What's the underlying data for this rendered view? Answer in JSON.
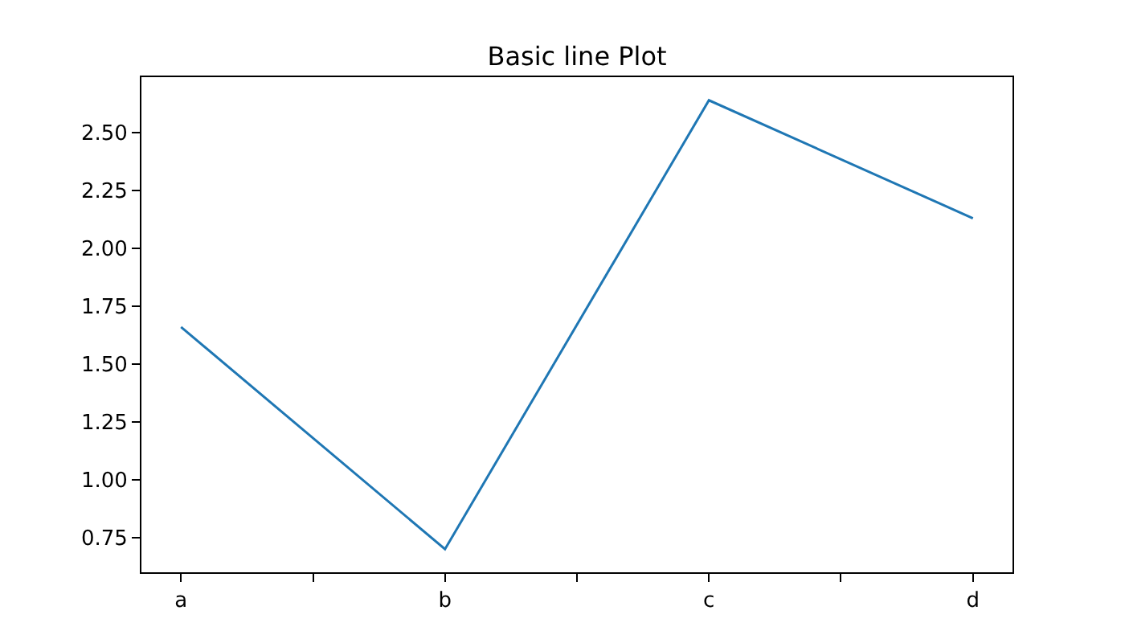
{
  "chart_data": {
    "type": "line",
    "title": "Basic line Plot",
    "categories": [
      "a",
      "b",
      "c",
      "d"
    ],
    "series": [
      {
        "color": "#1f77b4",
        "values": [
          1.66,
          0.7,
          2.64,
          2.13
        ]
      }
    ],
    "ylim": [
      0.6,
      2.74
    ],
    "yticks": [
      {
        "value": 0.75,
        "label": "0.75"
      },
      {
        "value": 1.0,
        "label": "1.00"
      },
      {
        "value": 1.25,
        "label": "1.25"
      },
      {
        "value": 1.5,
        "label": "1.50"
      },
      {
        "value": 1.75,
        "label": "1.75"
      },
      {
        "value": 2.0,
        "label": "2.00"
      },
      {
        "value": 2.25,
        "label": "2.25"
      },
      {
        "value": 2.5,
        "label": "2.50"
      }
    ],
    "marker": "none",
    "line_style": "solid"
  }
}
